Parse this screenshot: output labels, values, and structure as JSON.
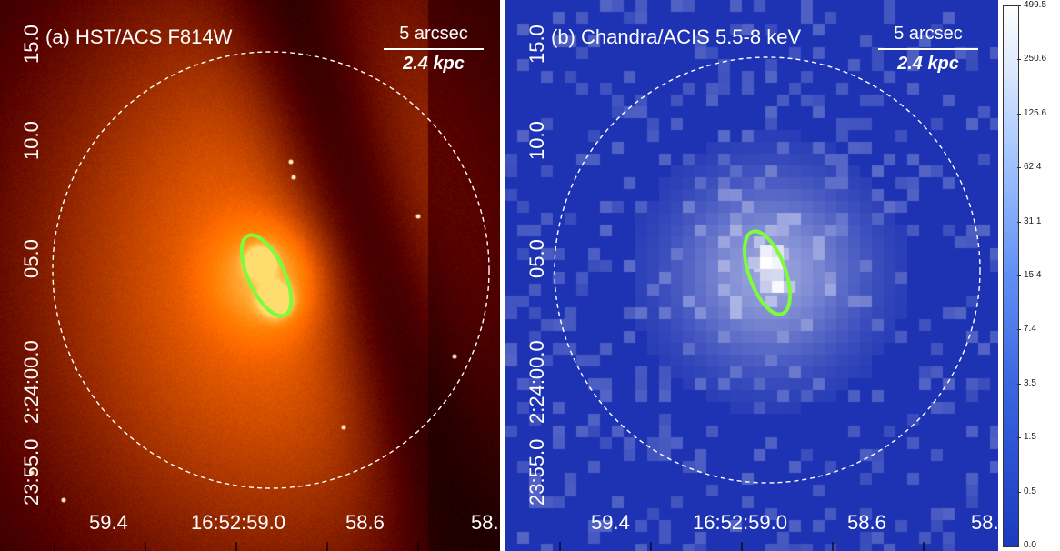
{
  "panels": [
    {
      "title": "(a) HST/ACS F814W",
      "scale_arcsec": "5 arcsec",
      "scale_kpc": "2.4 kpc",
      "x_ticks": [
        "59.4",
        "16:52:59.0",
        "58.6",
        "58."
      ],
      "y_ticks": [
        "15.0",
        "10.0",
        "05.0",
        "2:24:00.0",
        "23:55.0"
      ],
      "colormap": "orange-heat"
    },
    {
      "title": "(b) Chandra/ACIS 5.5-8 keV",
      "scale_arcsec": "5 arcsec",
      "scale_kpc": "2.4 kpc",
      "x_ticks": [
        "59.4",
        "16:52:59.0",
        "58.6",
        "58."
      ],
      "y_ticks": [
        "15.0",
        "10.0",
        "05.0",
        "2:24:00.0",
        "23:55.0"
      ],
      "colormap": "blue"
    }
  ],
  "colorbar": {
    "labels": [
      "499.5",
      "250.6",
      "125.6",
      "62.4",
      "31.1",
      "15.4",
      "7.4",
      "3.5",
      "1.5",
      "0.5",
      "0.0"
    ]
  },
  "colors": {
    "ellipse": "#7CFC3A",
    "circle": "#ffffff",
    "hst_dark": "#140400",
    "hst_bright": "#ffe6b0",
    "chandra_bg": "#1d33b3",
    "chandra_bright": "#ffffff"
  }
}
